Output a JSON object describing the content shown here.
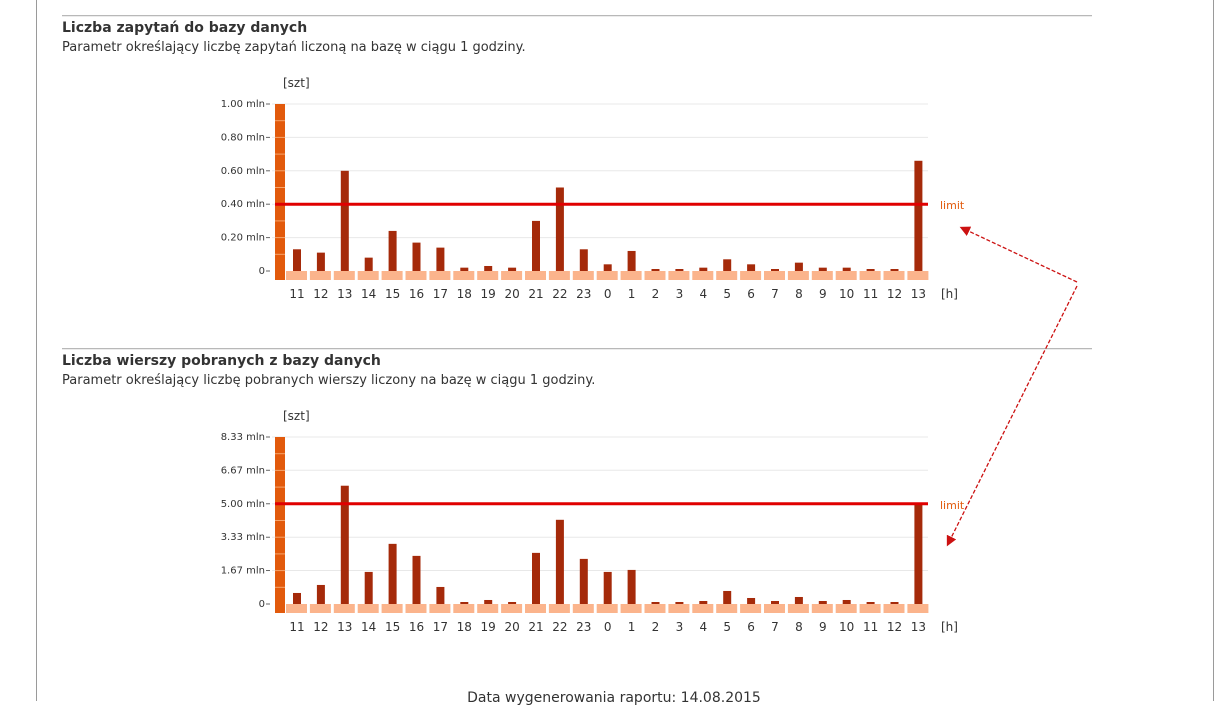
{
  "sections": [
    {
      "title": "Liczba zapytań do bazy danych",
      "description": "Parametr określający liczbę zapytań liczoną na bazę w ciągu 1 godziny."
    },
    {
      "title": "Liczba wierszy pobranych z bazy danych",
      "description": "Parametr określający liczbę pobranych wierszy liczony na bazę w ciągu 1 godziny."
    }
  ],
  "footer": {
    "generated_text": "Data wygenerowania raportu: 14.08.2015"
  },
  "colors": {
    "bar": "#a52a0a",
    "axis_bar": "#e25a0c",
    "baseline_block": "#fbb48c",
    "limit_line": "#e00000",
    "limit_label": "#e25a0c",
    "arrow": "#cc1111",
    "grid": "#e8e8e8"
  },
  "chart_data": [
    {
      "type": "bar",
      "title": "",
      "ylabel": "[szt]",
      "xlabel": "[h]",
      "categories": [
        "11",
        "12",
        "13",
        "14",
        "15",
        "16",
        "17",
        "18",
        "19",
        "20",
        "21",
        "22",
        "23",
        "0",
        "1",
        "2",
        "3",
        "4",
        "5",
        "6",
        "7",
        "8",
        "9",
        "10",
        "11",
        "12",
        "13"
      ],
      "y_tick_labels": [
        "0",
        "0.20 mln",
        "0.40 mln",
        "0.60 mln",
        "0.80 mln",
        "1.00 mln"
      ],
      "y_tick_values": [
        0,
        0.2,
        0.4,
        0.6,
        0.8,
        1.0
      ],
      "ylim": [
        0,
        1.0
      ],
      "values": [
        0.13,
        0.11,
        0.6,
        0.08,
        0.24,
        0.17,
        0.14,
        0.02,
        0.03,
        0.02,
        0.3,
        0.5,
        0.13,
        0.04,
        0.12,
        0.01,
        0.01,
        0.02,
        0.07,
        0.04,
        0.01,
        0.05,
        0.02,
        0.02,
        0.01,
        0.01,
        0.66
      ],
      "limit": 0.4,
      "limit_label": "limit",
      "grid": true
    },
    {
      "type": "bar",
      "title": "",
      "ylabel": "[szt]",
      "xlabel": "[h]",
      "categories": [
        "11",
        "12",
        "13",
        "14",
        "15",
        "16",
        "17",
        "18",
        "19",
        "20",
        "21",
        "22",
        "23",
        "0",
        "1",
        "2",
        "3",
        "4",
        "5",
        "6",
        "7",
        "8",
        "9",
        "10",
        "11",
        "12",
        "13"
      ],
      "y_tick_labels": [
        "0",
        "1.67 mln",
        "3.33 mln",
        "5.00 mln",
        "6.67 mln",
        "8.33 mln"
      ],
      "y_tick_values": [
        0,
        1.67,
        3.33,
        5.0,
        6.67,
        8.33
      ],
      "ylim": [
        0,
        8.33
      ],
      "values": [
        0.55,
        0.95,
        5.9,
        1.6,
        3.0,
        2.4,
        0.85,
        0.05,
        0.2,
        0.1,
        2.55,
        4.2,
        2.25,
        1.6,
        1.7,
        0.05,
        0.1,
        0.15,
        0.65,
        0.3,
        0.15,
        0.35,
        0.15,
        0.2,
        0.05,
        0.1,
        5.05
      ],
      "limit": 5.0,
      "limit_label": "limit",
      "grid": true
    }
  ]
}
